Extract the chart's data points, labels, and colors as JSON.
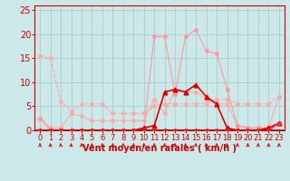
{
  "x": [
    0,
    1,
    2,
    3,
    4,
    5,
    6,
    7,
    8,
    9,
    10,
    11,
    12,
    13,
    14,
    15,
    16,
    17,
    18,
    19,
    20,
    21,
    22,
    23
  ],
  "series": [
    {
      "label": "line_salmon_dashed",
      "color": "#ffaaaa",
      "linewidth": 0.8,
      "marker": "o",
      "markersize": 2.5,
      "linestyle": "--",
      "values": [
        15.5,
        15.0,
        6.0,
        4.0,
        5.5,
        5.5,
        5.5,
        3.5,
        3.5,
        3.5,
        3.5,
        5.0,
        5.5,
        5.5,
        5.5,
        5.5,
        5.5,
        6.5,
        6.5,
        5.5,
        5.5,
        5.5,
        5.5,
        7.0
      ]
    },
    {
      "label": "line_salmon1",
      "color": "#ffaaaa",
      "linewidth": 0.8,
      "marker": "o",
      "markersize": 2.5,
      "linestyle": "-",
      "values": [
        2.5,
        0.5,
        0.5,
        3.5,
        3.0,
        2.0,
        2.0,
        2.0,
        2.0,
        2.0,
        2.0,
        6.5,
        3.5,
        8.5,
        8.0,
        8.0,
        6.5,
        5.5,
        5.5,
        1.0,
        0.5,
        0.5,
        0.5,
        7.0
      ]
    },
    {
      "label": "line_salmon2",
      "color": "#ff9999",
      "linewidth": 0.8,
      "marker": "o",
      "markersize": 2.5,
      "linestyle": "-",
      "values": [
        2.5,
        0.0,
        0.0,
        0.0,
        0.0,
        0.0,
        0.0,
        0.0,
        0.0,
        0.0,
        0.5,
        19.5,
        19.5,
        7.5,
        19.5,
        21.0,
        16.5,
        16.0,
        8.5,
        1.0,
        0.5,
        0.5,
        0.5,
        1.5
      ]
    },
    {
      "label": "line_red_triangle",
      "color": "#dd0000",
      "linewidth": 1.2,
      "marker": "^",
      "markersize": 3.5,
      "linestyle": "-",
      "values": [
        0.0,
        0.0,
        0.0,
        0.0,
        0.0,
        0.0,
        0.0,
        0.0,
        0.0,
        0.0,
        0.5,
        1.0,
        8.0,
        8.5,
        8.0,
        9.5,
        7.0,
        5.5,
        0.5,
        0.0,
        0.0,
        0.0,
        0.5,
        1.5
      ]
    },
    {
      "label": "line_red_circle",
      "color": "#ff3333",
      "linewidth": 1.2,
      "marker": "o",
      "markersize": 2.5,
      "linestyle": "-",
      "values": [
        0.0,
        0.0,
        0.0,
        0.0,
        0.0,
        0.0,
        0.0,
        0.0,
        0.0,
        0.0,
        0.0,
        0.0,
        0.0,
        0.0,
        0.0,
        0.0,
        0.0,
        0.0,
        0.0,
        0.0,
        0.0,
        0.0,
        0.0,
        1.5
      ]
    }
  ],
  "xlabel": "Vent moyen/en rafales ( km/h )",
  "xlim": [
    -0.5,
    23.5
  ],
  "ylim": [
    0,
    26
  ],
  "yticks": [
    0,
    5,
    10,
    15,
    20,
    25
  ],
  "xticks": [
    0,
    1,
    2,
    3,
    4,
    5,
    6,
    7,
    8,
    9,
    10,
    11,
    12,
    13,
    14,
    15,
    16,
    17,
    18,
    19,
    20,
    21,
    22,
    23
  ],
  "bg_color": "#cce8e8",
  "grid_color": "#aacccc",
  "axis_color": "#cc0000",
  "tick_color": "#cc0000",
  "xlabel_color": "#cc0000",
  "xlabel_fontsize": 7,
  "ytick_fontsize": 7,
  "xtick_fontsize": 6
}
